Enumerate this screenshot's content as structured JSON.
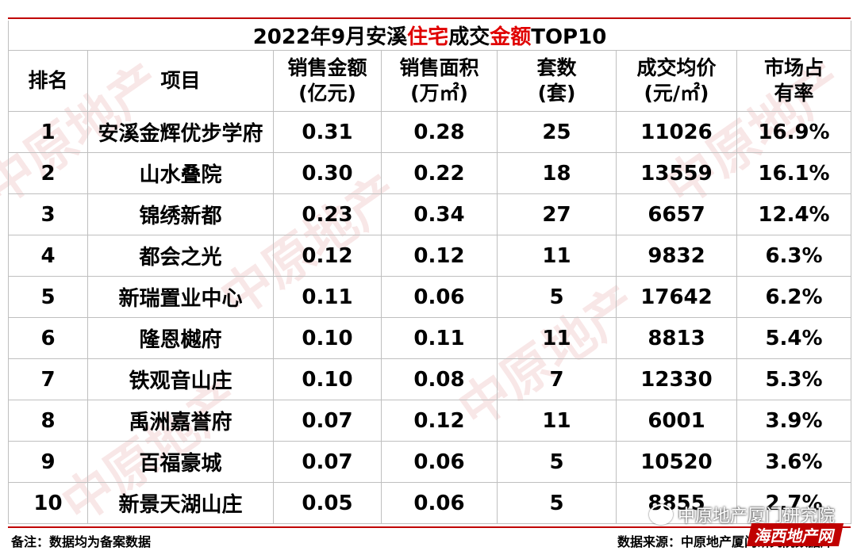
{
  "title": {
    "prefix": "2022年9月安溪",
    "red1": "住宅",
    "middle": "成交",
    "red2": "金额",
    "suffix": "TOP10"
  },
  "headers": [
    {
      "line1": "排名",
      "line2": ""
    },
    {
      "line1": "项目",
      "line2": ""
    },
    {
      "line1": "销售金额",
      "line2": "(亿元)"
    },
    {
      "line1": "销售面积",
      "line2": "(万㎡)"
    },
    {
      "line1": "套数",
      "line2": "(套)"
    },
    {
      "line1": "成交均价",
      "line2": "(元/㎡)"
    },
    {
      "line1": "市场占",
      "line2": "有率"
    }
  ],
  "rows": [
    [
      "1",
      "安溪金辉优步学府",
      "0.31",
      "0.28",
      "25",
      "11026",
      "16.9%"
    ],
    [
      "2",
      "山水叠院",
      "0.30",
      "0.22",
      "18",
      "13559",
      "16.1%"
    ],
    [
      "3",
      "锦绣新都",
      "0.23",
      "0.34",
      "27",
      "6657",
      "12.4%"
    ],
    [
      "4",
      "都会之光",
      "0.12",
      "0.12",
      "11",
      "9832",
      "6.3%"
    ],
    [
      "5",
      "新瑞置业中心",
      "0.11",
      "0.06",
      "5",
      "17642",
      "6.2%"
    ],
    [
      "6",
      "隆恩樾府",
      "0.10",
      "0.11",
      "11",
      "8813",
      "5.4%"
    ],
    [
      "7",
      "铁观音山庄",
      "0.10",
      "0.08",
      "7",
      "12330",
      "5.3%"
    ],
    [
      "8",
      "禹洲嘉誉府",
      "0.07",
      "0.12",
      "11",
      "6001",
      "3.9%"
    ],
    [
      "9",
      "百福豪城",
      "0.07",
      "0.06",
      "5",
      "10520",
      "3.6%"
    ],
    [
      "10",
      "新景天湖山庄",
      "0.05",
      "0.06",
      "5",
      "8855",
      "2.7%"
    ]
  ],
  "footer": {
    "note": "备注：数据均为备案数据",
    "source": "数据来源：中原地产厦门研究院数据库"
  },
  "wechat_label": "中原地产厦门研究院",
  "stamp_text": "海西地产网",
  "watermark_text": "中原地产",
  "colors": {
    "accent_red": "#e00000",
    "border": "#bfbfbf"
  }
}
